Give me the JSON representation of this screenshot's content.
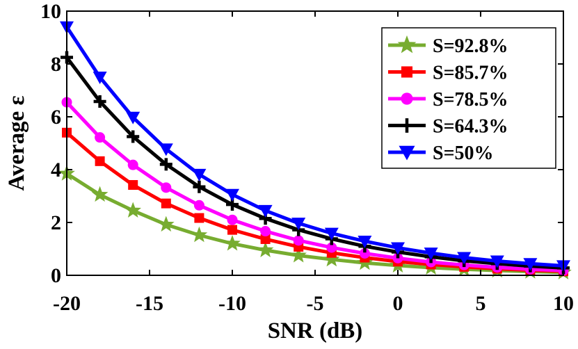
{
  "chart_data": {
    "type": "line",
    "title": "",
    "xlabel": "SNR (dB)",
    "ylabel": "Average ε",
    "xlim": [
      -20,
      10
    ],
    "ylim": [
      0,
      10
    ],
    "xticks": [
      -20,
      -15,
      -10,
      -5,
      0,
      5,
      10
    ],
    "yticks": [
      0,
      2,
      4,
      6,
      8,
      10
    ],
    "grid": false,
    "legend_position": "top-right",
    "x": [
      -20,
      -18,
      -16,
      -14,
      -12,
      -10,
      -8,
      -6,
      -4,
      -2,
      0,
      2,
      4,
      6,
      8,
      10
    ],
    "series": [
      {
        "name": "S=92.8%",
        "color": "#77ac30",
        "marker": "star",
        "values": [
          3.85,
          3.05,
          2.45,
          1.92,
          1.52,
          1.2,
          0.95,
          0.75,
          0.6,
          0.47,
          0.37,
          0.29,
          0.23,
          0.18,
          0.14,
          0.11
        ]
      },
      {
        "name": "S=85.7%",
        "color": "#ff0000",
        "marker": "square",
        "values": [
          5.4,
          4.32,
          3.42,
          2.72,
          2.17,
          1.72,
          1.37,
          1.08,
          0.85,
          0.67,
          0.52,
          0.41,
          0.32,
          0.25,
          0.19,
          0.15
        ]
      },
      {
        "name": "S=78.5%",
        "color": "#ff00ff",
        "marker": "circle",
        "values": [
          6.55,
          5.22,
          4.18,
          3.32,
          2.65,
          2.1,
          1.67,
          1.32,
          1.05,
          0.83,
          0.65,
          0.5,
          0.39,
          0.3,
          0.23,
          0.18
        ]
      },
      {
        "name": "S=64.3%",
        "color": "#000000",
        "marker": "plus",
        "values": [
          8.25,
          6.58,
          5.25,
          4.2,
          3.35,
          2.68,
          2.15,
          1.72,
          1.38,
          1.1,
          0.88,
          0.7,
          0.55,
          0.44,
          0.35,
          0.28
        ]
      },
      {
        "name": "S=50%",
        "color": "#0000ff",
        "marker": "triangle-down",
        "values": [
          9.4,
          7.5,
          5.98,
          4.78,
          3.82,
          3.06,
          2.45,
          1.97,
          1.59,
          1.29,
          1.04,
          0.84,
          0.67,
          0.54,
          0.44,
          0.36
        ]
      }
    ]
  }
}
